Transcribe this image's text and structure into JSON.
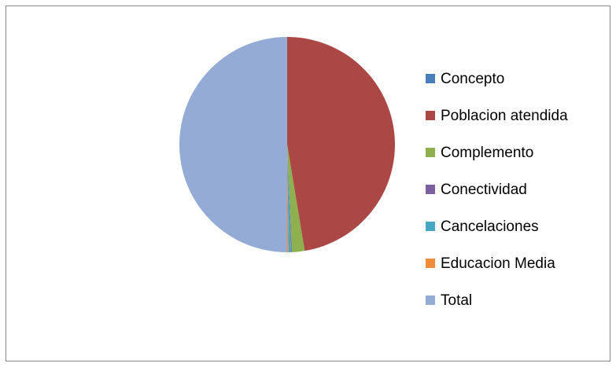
{
  "chart_data": {
    "type": "pie",
    "categories": [
      "Concepto",
      "Poblacion atendida",
      "Complemento",
      "Conectividad",
      "Cancelaciones",
      "Educacion Media",
      "Total"
    ],
    "values": [
      0,
      47.4,
      1.9,
      0.1,
      0.4,
      0.2,
      50
    ],
    "colors": [
      "#4a7ebb",
      "#ab4744",
      "#8fb04e",
      "#7b5f9e",
      "#46a5c0",
      "#f08d3c",
      "#94acd5"
    ],
    "legend": "right"
  }
}
